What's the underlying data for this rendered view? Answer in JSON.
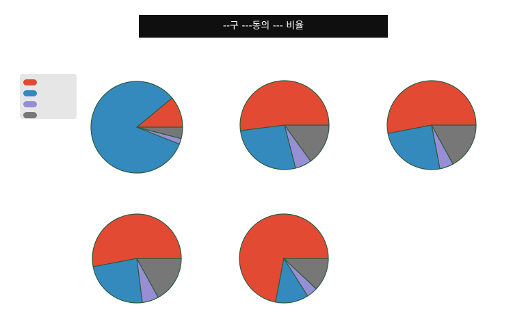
{
  "title": "--구 ---동의 --- 비율",
  "colors": {
    "title_bg": "#0f0f0f",
    "title_fg": "#ffffff",
    "legend_bg": "#e6e6e6",
    "edge": "#2d5a3d"
  },
  "chart_data": {
    "type": "pie",
    "legend_placement": "left",
    "legend": [
      {
        "label": "",
        "color": "#e24a33"
      },
      {
        "label": "",
        "color": "#348abd"
      },
      {
        "label": "",
        "color": "#988ed5"
      },
      {
        "label": "",
        "color": "#777777"
      }
    ],
    "pies": [
      {
        "title": "",
        "start_angle": 0,
        "slices": [
          {
            "label": "",
            "value": 11,
            "color": "#e24a33"
          },
          {
            "label": "",
            "value": 83,
            "color": "#348abd"
          },
          {
            "label": "",
            "value": 2,
            "color": "#988ed5"
          },
          {
            "label": "",
            "value": 4,
            "color": "#777777"
          }
        ]
      },
      {
        "title": "",
        "start_angle": 0,
        "slices": [
          {
            "label": "",
            "value": 52,
            "color": "#e24a33"
          },
          {
            "label": "",
            "value": 27,
            "color": "#348abd"
          },
          {
            "label": "",
            "value": 6,
            "color": "#988ed5"
          },
          {
            "label": "",
            "value": 15,
            "color": "#777777"
          }
        ]
      },
      {
        "title": "",
        "start_angle": 0,
        "slices": [
          {
            "label": "",
            "value": 53,
            "color": "#e24a33"
          },
          {
            "label": "",
            "value": 25,
            "color": "#348abd"
          },
          {
            "label": "",
            "value": 5,
            "color": "#988ed5"
          },
          {
            "label": "",
            "value": 17,
            "color": "#777777"
          }
        ]
      },
      {
        "title": "",
        "start_angle": 0,
        "slices": [
          {
            "label": "",
            "value": 53,
            "color": "#e24a33"
          },
          {
            "label": "",
            "value": 24,
            "color": "#348abd"
          },
          {
            "label": "",
            "value": 6,
            "color": "#988ed5"
          },
          {
            "label": "",
            "value": 17,
            "color": "#777777"
          }
        ]
      },
      {
        "title": "",
        "start_angle": 0,
        "slices": [
          {
            "label": "",
            "value": 72,
            "color": "#e24a33"
          },
          {
            "label": "",
            "value": 12,
            "color": "#348abd"
          },
          {
            "label": "",
            "value": 4,
            "color": "#988ed5"
          },
          {
            "label": "",
            "value": 12,
            "color": "#777777"
          }
        ]
      }
    ]
  }
}
